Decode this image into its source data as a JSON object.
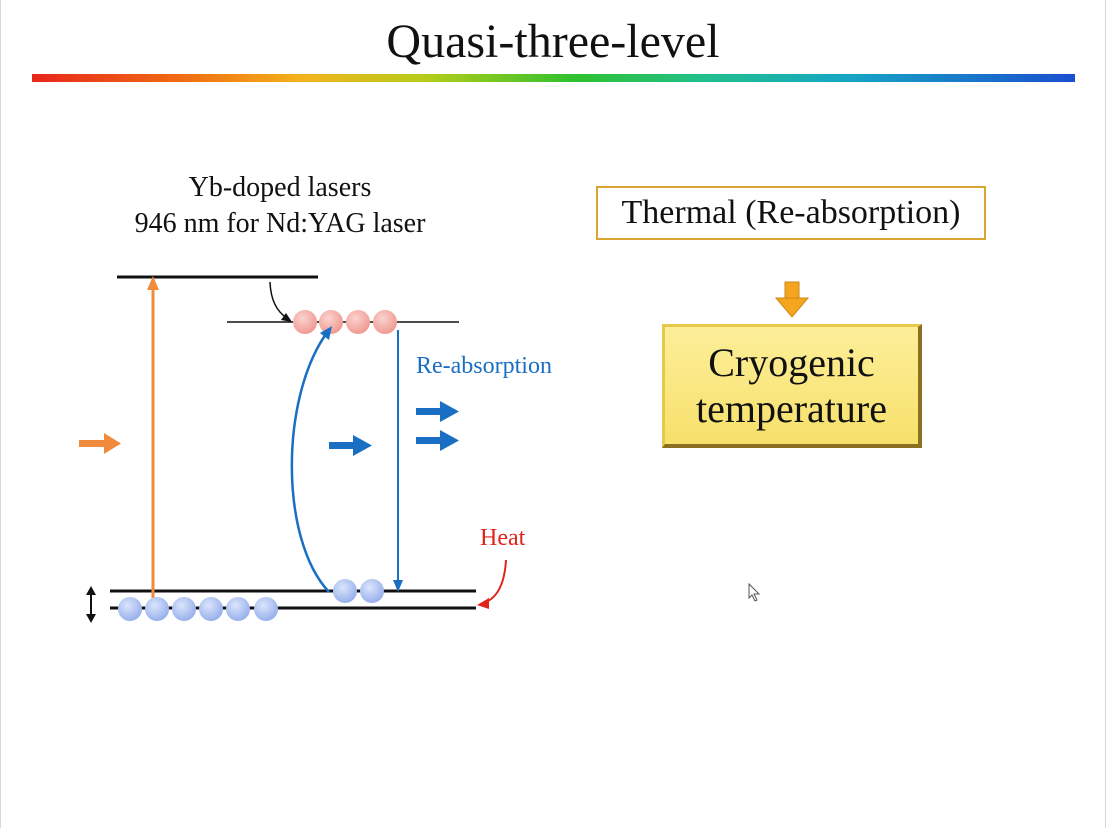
{
  "slide": {
    "title": "Quasi-three-level"
  },
  "diagram": {
    "caption_line1": "Yb-doped lasers",
    "caption_line2": "946 nm for Nd:YAG laser",
    "reabsorption_label": "Re-absorption",
    "heat_label": "Heat"
  },
  "flow": {
    "thermal_box": "Thermal (Re-absorption)",
    "cryo_line1": "Cryogenic",
    "cryo_line2": "temperature"
  },
  "colors": {
    "pump_orange": "#f08a3c",
    "photon_blue": "#1a6fc4",
    "heat_red": "#e2231a",
    "upper_atoms": "#f4a6a0",
    "lower_atoms": "#a9bdf0",
    "box_border": "#d8a531",
    "cryo_fill": "#f9e883"
  },
  "icons": [
    "pump-arrow-icon",
    "photon-arrow-icon",
    "down-arrow-icon",
    "double-arrow-icon",
    "cursor-icon"
  ]
}
